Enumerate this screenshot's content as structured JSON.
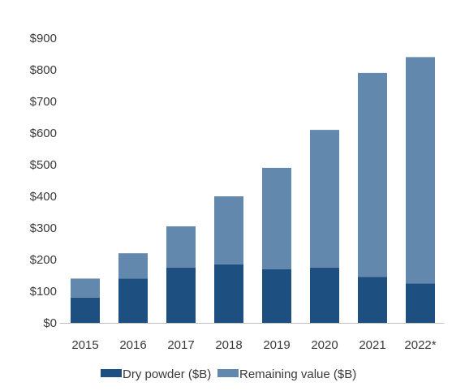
{
  "chart_data": {
    "type": "bar",
    "stacked": true,
    "categories": [
      "2015",
      "2016",
      "2017",
      "2018",
      "2019",
      "2020",
      "2021",
      "2022*"
    ],
    "series": [
      {
        "name": "Dry powder ($B)",
        "color": "#1d4f80",
        "values": [
          80,
          140,
          175,
          185,
          170,
          175,
          145,
          125
        ]
      },
      {
        "name": "Remaining value ($B)",
        "color": "#6288ad",
        "values": [
          60,
          80,
          130,
          215,
          320,
          435,
          645,
          715
        ]
      }
    ],
    "ylim": [
      0,
      900
    ],
    "yticks": [
      0,
      100,
      200,
      300,
      400,
      500,
      600,
      700,
      800,
      900
    ],
    "ytick_labels": [
      "$0",
      "$100",
      "$200",
      "$300",
      "$400",
      "$500",
      "$600",
      "$700",
      "$800",
      "$900"
    ],
    "grid": false,
    "legend_position": "bottom"
  }
}
